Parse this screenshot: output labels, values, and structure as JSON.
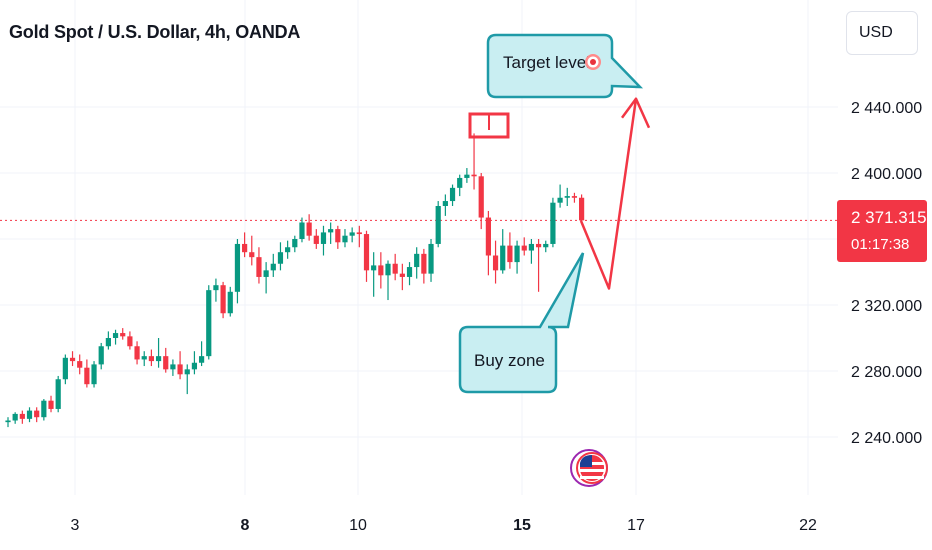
{
  "header": {
    "title": "Gold Spot / U.S. Dollar, 4h, OANDA",
    "currency_button": "USD"
  },
  "price_tag": {
    "price": "2 371.315",
    "countdown": "01:17:38"
  },
  "annotations": {
    "target_label": "Target level",
    "buy_label": "Buy zone"
  },
  "colors": {
    "up": "#089981",
    "down": "#f23645",
    "callout_fill": "#c9eef2",
    "callout_border": "#1f9aa7",
    "arrow": "#f23645"
  },
  "icons": [
    "target-icon",
    "us-flag-icon"
  ],
  "chart_data": {
    "type": "candlestick",
    "title": "Gold Spot / U.S. Dollar, 4h, OANDA",
    "yticks": [
      "2 440.000",
      "2 400.000",
      "2 320.000",
      "2 280.000",
      "2 240.000"
    ],
    "ytick_values": [
      2440,
      2400,
      2320,
      2280,
      2240
    ],
    "xticks": [
      {
        "label": "3",
        "bold": false
      },
      {
        "label": "8",
        "bold": true
      },
      {
        "label": "10",
        "bold": false
      },
      {
        "label": "15",
        "bold": true
      },
      {
        "label": "17",
        "bold": false
      },
      {
        "label": "22",
        "bold": false
      }
    ],
    "current_price": 2371.315,
    "grid": true,
    "candles": [
      [
        2249,
        2252,
        2246,
        2250
      ],
      [
        2250,
        2255,
        2248,
        2254
      ],
      [
        2254,
        2256,
        2248,
        2251
      ],
      [
        2251,
        2258,
        2249,
        2256
      ],
      [
        2256,
        2258,
        2249,
        2252
      ],
      [
        2252,
        2263,
        2250,
        2262
      ],
      [
        2262,
        2265,
        2255,
        2257
      ],
      [
        2257,
        2277,
        2255,
        2275
      ],
      [
        2275,
        2290,
        2272,
        2288
      ],
      [
        2288,
        2292,
        2283,
        2286
      ],
      [
        2286,
        2290,
        2278,
        2282
      ],
      [
        2282,
        2287,
        2270,
        2272
      ],
      [
        2272,
        2286,
        2270,
        2284
      ],
      [
        2284,
        2297,
        2281,
        2295
      ],
      [
        2295,
        2304,
        2293,
        2300
      ],
      [
        2300,
        2305,
        2296,
        2303
      ],
      [
        2303,
        2306,
        2299,
        2301
      ],
      [
        2301,
        2304,
        2293,
        2295
      ],
      [
        2295,
        2298,
        2284,
        2287
      ],
      [
        2287,
        2292,
        2283,
        2289
      ],
      [
        2289,
        2293,
        2283,
        2286
      ],
      [
        2286,
        2300,
        2282,
        2289
      ],
      [
        2289,
        2294,
        2279,
        2281
      ],
      [
        2281,
        2287,
        2277,
        2284
      ],
      [
        2284,
        2292,
        2275,
        2278
      ],
      [
        2278,
        2284,
        2266,
        2281
      ],
      [
        2281,
        2292,
        2278,
        2285
      ],
      [
        2285,
        2298,
        2283,
        2289
      ],
      [
        2289,
        2332,
        2287,
        2329
      ],
      [
        2329,
        2336,
        2322,
        2332
      ],
      [
        2332,
        2334,
        2312,
        2315
      ],
      [
        2315,
        2331,
        2313,
        2328
      ],
      [
        2328,
        2360,
        2321,
        2357
      ],
      [
        2357,
        2364,
        2349,
        2352
      ],
      [
        2352,
        2362,
        2344,
        2349
      ],
      [
        2349,
        2355,
        2333,
        2337
      ],
      [
        2337,
        2346,
        2327,
        2341
      ],
      [
        2341,
        2351,
        2337,
        2345
      ],
      [
        2345,
        2358,
        2341,
        2352
      ],
      [
        2352,
        2359,
        2348,
        2355
      ],
      [
        2355,
        2362,
        2352,
        2360
      ],
      [
        2360,
        2373,
        2358,
        2370
      ],
      [
        2370,
        2375,
        2359,
        2362
      ],
      [
        2362,
        2366,
        2354,
        2357
      ],
      [
        2357,
        2368,
        2350,
        2364
      ],
      [
        2364,
        2370,
        2357,
        2366
      ],
      [
        2366,
        2368,
        2354,
        2358
      ],
      [
        2358,
        2366,
        2355,
        2362
      ],
      [
        2362,
        2367,
        2358,
        2364
      ],
      [
        2364,
        2368,
        2355,
        2363
      ],
      [
        2363,
        2365,
        2334,
        2341
      ],
      [
        2341,
        2352,
        2325,
        2344
      ],
      [
        2344,
        2352,
        2330,
        2338
      ],
      [
        2338,
        2347,
        2323,
        2345
      ],
      [
        2345,
        2351,
        2335,
        2339
      ],
      [
        2339,
        2345,
        2329,
        2337
      ],
      [
        2337,
        2346,
        2332,
        2343
      ],
      [
        2343,
        2355,
        2336,
        2351
      ],
      [
        2351,
        2354,
        2333,
        2339
      ],
      [
        2339,
        2360,
        2334,
        2357
      ],
      [
        2357,
        2383,
        2355,
        2380
      ],
      [
        2380,
        2387,
        2374,
        2383
      ],
      [
        2383,
        2393,
        2380,
        2391
      ],
      [
        2391,
        2399,
        2386,
        2397
      ],
      [
        2397,
        2403,
        2394,
        2399
      ],
      [
        2399,
        2424,
        2390,
        2398
      ],
      [
        2398,
        2400,
        2366,
        2373
      ],
      [
        2373,
        2377,
        2338,
        2350
      ],
      [
        2350,
        2359,
        2333,
        2341
      ],
      [
        2341,
        2366,
        2339,
        2356
      ],
      [
        2356,
        2364,
        2342,
        2346
      ],
      [
        2346,
        2359,
        2339,
        2356
      ],
      [
        2356,
        2361,
        2350,
        2353
      ],
      [
        2353,
        2360,
        2345,
        2357
      ],
      [
        2357,
        2360,
        2328,
        2355
      ],
      [
        2355,
        2359,
        2352,
        2357
      ],
      [
        2357,
        2385,
        2355,
        2382
      ],
      [
        2382,
        2393,
        2379,
        2385
      ],
      [
        2385,
        2391,
        2380,
        2386
      ],
      [
        2386,
        2388,
        2382,
        2385
      ],
      [
        2385,
        2387,
        2369,
        2371.3
      ]
    ],
    "projection_path": [
      2371,
      2330,
      2445
    ],
    "marked_high": 2424
  }
}
